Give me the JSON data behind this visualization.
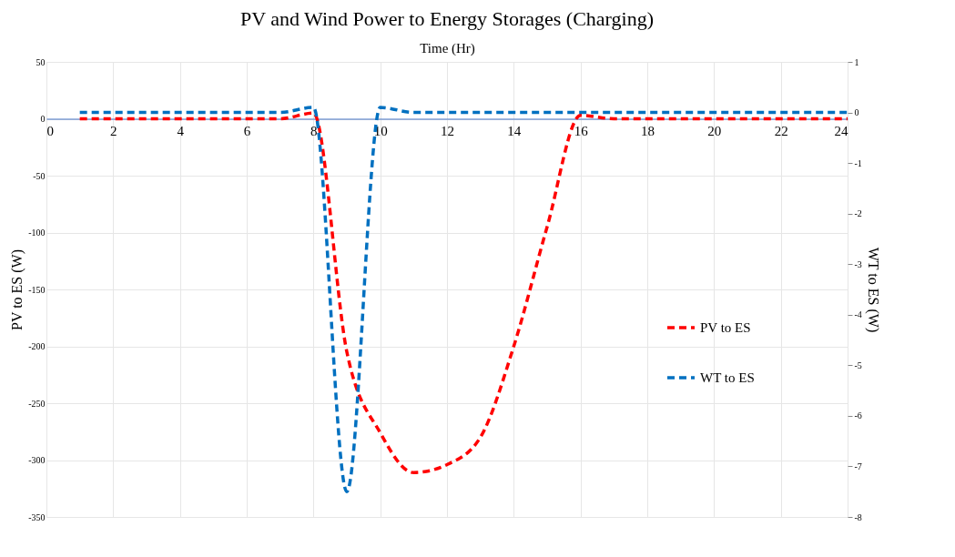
{
  "chart_data": {
    "type": "line",
    "title": "PV and Wind Power to Energy Storages (Charging)",
    "xlabel": "Time (Hr)",
    "ylabel": "PV to ES (W)",
    "y2label": "WT to ES (W)",
    "x": [
      1,
      2,
      3,
      4,
      5,
      6,
      7,
      8,
      9,
      10,
      11,
      12,
      13,
      14,
      15,
      16,
      17,
      18,
      19,
      20,
      21,
      22,
      23,
      24
    ],
    "series": [
      {
        "name": "PV to ES",
        "color": "#ff0000",
        "values": [
          0,
          0,
          0,
          0,
          0,
          0,
          0,
          5,
          -205,
          -276,
          -311,
          -304,
          -280,
          -200,
          -95,
          3,
          0,
          0,
          0,
          0,
          0,
          0,
          0,
          0
        ]
      },
      {
        "name": "WT to ES",
        "color": "#0070c0",
        "axis": "y2",
        "values": [
          0,
          0,
          0,
          0,
          0,
          0,
          0,
          0.1,
          -7.5,
          0.1,
          0,
          0,
          0,
          0,
          0,
          0,
          0,
          0,
          0,
          0,
          0,
          0,
          0,
          0
        ]
      }
    ],
    "xlim": [
      0,
      24
    ],
    "xticks": [
      0,
      2,
      4,
      6,
      8,
      10,
      12,
      14,
      16,
      18,
      20,
      22,
      24
    ],
    "ylim": [
      -350,
      50
    ],
    "yticks": [
      -350,
      -300,
      -250,
      -200,
      -150,
      -100,
      -50,
      0,
      50
    ],
    "y2lim": [
      -8,
      1
    ],
    "y2ticks": [
      -8,
      -7,
      -6,
      -5,
      -4,
      -3,
      -2,
      -1,
      0,
      1
    ],
    "grid": true,
    "legend": "right",
    "line_style": "dashed",
    "marker": "none"
  }
}
